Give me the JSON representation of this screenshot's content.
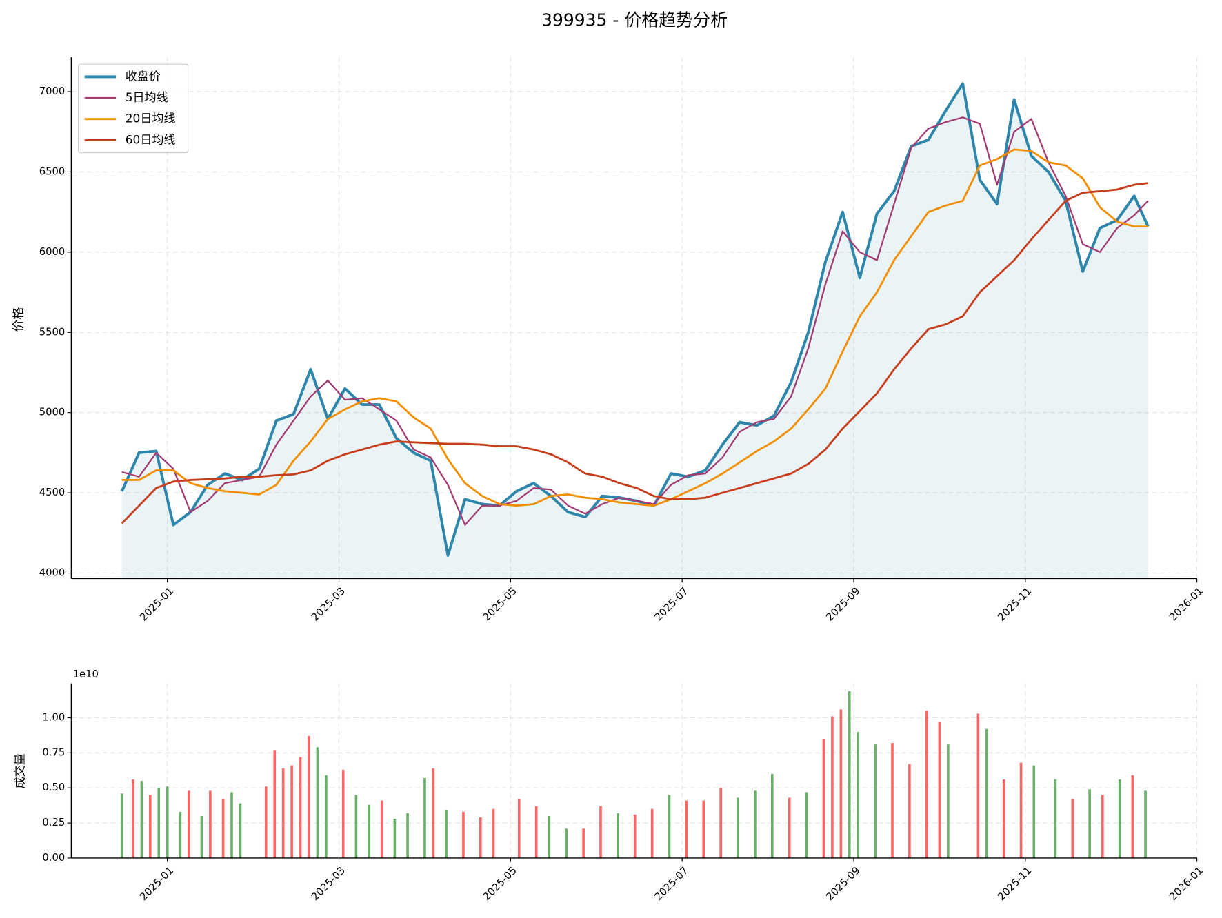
{
  "chart_data": [
    {
      "type": "line",
      "title": "399935 - 价格趋势分析",
      "ylabel": "价格",
      "grid": true,
      "legend": "upper left",
      "fill_color": "#2e86ab",
      "xlim": [
        -1.12,
        12.0
      ],
      "xticks": [
        {
          "value": 0,
          "label": "2025-01"
        },
        {
          "value": 2,
          "label": "2025-03"
        },
        {
          "value": 4,
          "label": "2025-05"
        },
        {
          "value": 6,
          "label": "2025-07"
        },
        {
          "value": 8,
          "label": "2025-09"
        },
        {
          "value": 10,
          "label": "2025-11"
        },
        {
          "value": 12,
          "label": "2026-01"
        }
      ],
      "ylim": [
        3966,
        7215
      ],
      "yticks": [
        4000,
        4500,
        5000,
        5500,
        6000,
        6500,
        7000
      ],
      "x": [
        -0.53,
        -0.33,
        -0.13,
        0.07,
        0.27,
        0.47,
        0.67,
        0.87,
        1.07,
        1.27,
        1.47,
        1.67,
        1.87,
        2.07,
        2.27,
        2.47,
        2.67,
        2.87,
        3.07,
        3.27,
        3.47,
        3.67,
        3.87,
        4.07,
        4.27,
        4.47,
        4.67,
        4.87,
        5.07,
        5.27,
        5.47,
        5.67,
        5.87,
        6.07,
        6.27,
        6.47,
        6.67,
        6.87,
        7.07,
        7.27,
        7.47,
        7.67,
        7.87,
        8.07,
        8.27,
        8.47,
        8.67,
        8.87,
        9.07,
        9.27,
        9.47,
        9.67,
        9.87,
        10.07,
        10.27,
        10.47,
        10.67,
        10.87,
        11.07,
        11.27,
        11.43
      ],
      "series": [
        {
          "name": "收盘价",
          "color": "#2e86ab",
          "values": [
            4510,
            4750,
            4760,
            4300,
            4380,
            4550,
            4620,
            4580,
            4650,
            4950,
            4990,
            5270,
            4960,
            5150,
            5050,
            5050,
            4840,
            4750,
            4700,
            4110,
            4460,
            4430,
            4420,
            4510,
            4560,
            4480,
            4380,
            4350,
            4480,
            4470,
            4450,
            4420,
            4620,
            4600,
            4640,
            4800,
            4940,
            4920,
            4980,
            5190,
            5500,
            5940,
            6250,
            5840,
            6240,
            6380,
            6660,
            6700,
            6880,
            7050,
            6450,
            6300,
            6950,
            6600,
            6500,
            6320,
            5880,
            6150,
            6200,
            6350,
            6160
          ]
        },
        {
          "name": "5日均线",
          "color": "#a23b72",
          "values": [
            4630,
            4600,
            4750,
            4650,
            4380,
            4450,
            4560,
            4580,
            4600,
            4800,
            4950,
            5100,
            5200,
            5080,
            5090,
            5020,
            4950,
            4770,
            4720,
            4550,
            4300,
            4420,
            4420,
            4450,
            4530,
            4520,
            4420,
            4370,
            4430,
            4470,
            4450,
            4430,
            4550,
            4610,
            4620,
            4720,
            4880,
            4940,
            4960,
            5100,
            5400,
            5800,
            6130,
            6000,
            5950,
            6300,
            6650,
            6770,
            6810,
            6840,
            6800,
            6420,
            6750,
            6830,
            6560,
            6350,
            6050,
            6000,
            6150,
            6230,
            6320
          ]
        },
        {
          "name": "20日均线",
          "color": "#f18f01",
          "values": [
            4580,
            4580,
            4640,
            4640,
            4560,
            4530,
            4510,
            4500,
            4490,
            4550,
            4700,
            4820,
            4960,
            5020,
            5070,
            5090,
            5070,
            4970,
            4900,
            4710,
            4560,
            4480,
            4430,
            4420,
            4430,
            4480,
            4490,
            4470,
            4460,
            4440,
            4430,
            4420,
            4460,
            4510,
            4560,
            4620,
            4690,
            4760,
            4820,
            4900,
            5020,
            5150,
            5380,
            5600,
            5750,
            5950,
            6100,
            6250,
            6290,
            6320,
            6540,
            6580,
            6640,
            6630,
            6560,
            6540,
            6460,
            6280,
            6190,
            6160,
            6160
          ]
        },
        {
          "name": "60日均线",
          "color": "#c73e1d",
          "values": [
            4310,
            4420,
            4530,
            4570,
            4580,
            4585,
            4590,
            4600,
            4600,
            4610,
            4615,
            4640,
            4700,
            4740,
            4770,
            4800,
            4820,
            4815,
            4810,
            4805,
            4805,
            4800,
            4790,
            4790,
            4770,
            4740,
            4690,
            4620,
            4600,
            4560,
            4530,
            4480,
            4460,
            4460,
            4470,
            4500,
            4530,
            4560,
            4590,
            4620,
            4680,
            4770,
            4900,
            5010,
            5120,
            5270,
            5400,
            5520,
            5550,
            5600,
            5750,
            5850,
            5950,
            6080,
            6200,
            6320,
            6370,
            6380,
            6390,
            6420,
            6430
          ]
        }
      ]
    },
    {
      "type": "bar",
      "ylabel": "成交量",
      "offset_label": "1e10",
      "grid": true,
      "xlim": [
        -1.12,
        12.0
      ],
      "xticks": [
        {
          "value": 0,
          "label": "2025-01"
        },
        {
          "value": 2,
          "label": "2025-03"
        },
        {
          "value": 4,
          "label": "2025-05"
        },
        {
          "value": 6,
          "label": "2025-07"
        },
        {
          "value": 8,
          "label": "2025-09"
        },
        {
          "value": 10,
          "label": "2025-11"
        },
        {
          "value": 12,
          "label": "2026-01"
        }
      ],
      "ylim": [
        0,
        1.245
      ],
      "yticks": [
        {
          "value": 0,
          "label": "0.00"
        },
        {
          "value": 0.25,
          "label": "0.25"
        },
        {
          "value": 0.5,
          "label": "0.50"
        },
        {
          "value": 0.75,
          "label": "0.75"
        },
        {
          "value": 1,
          "label": "1.00"
        }
      ],
      "x": [
        -0.53,
        -0.4,
        -0.3,
        -0.2,
        -0.1,
        0.0,
        0.15,
        0.25,
        0.4,
        0.5,
        0.65,
        0.75,
        0.85,
        1.15,
        1.25,
        1.35,
        1.45,
        1.55,
        1.65,
        1.75,
        1.85,
        2.05,
        2.2,
        2.35,
        2.5,
        2.65,
        2.8,
        3.0,
        3.1,
        3.25,
        3.45,
        3.65,
        3.8,
        4.1,
        4.3,
        4.45,
        4.65,
        4.85,
        5.05,
        5.25,
        5.45,
        5.65,
        5.85,
        6.05,
        6.25,
        6.45,
        6.65,
        6.85,
        7.05,
        7.25,
        7.45,
        7.65,
        7.75,
        7.85,
        7.95,
        8.05,
        8.25,
        8.45,
        8.65,
        8.85,
        9.0,
        9.1,
        9.45,
        9.55,
        9.75,
        9.95,
        10.1,
        10.35,
        10.55,
        10.75,
        10.9,
        11.1,
        11.25,
        11.4
      ],
      "values": [
        0.46,
        0.56,
        0.55,
        0.45,
        0.5,
        0.51,
        0.33,
        0.48,
        0.3,
        0.48,
        0.42,
        0.47,
        0.39,
        0.51,
        0.77,
        0.64,
        0.66,
        0.72,
        0.87,
        0.79,
        0.59,
        0.63,
        0.45,
        0.38,
        0.41,
        0.28,
        0.32,
        0.57,
        0.64,
        0.34,
        0.33,
        0.29,
        0.35,
        0.42,
        0.37,
        0.3,
        0.21,
        0.21,
        0.37,
        0.32,
        0.31,
        0.35,
        0.45,
        0.41,
        0.41,
        0.5,
        0.43,
        0.48,
        0.6,
        0.43,
        0.47,
        0.85,
        1.01,
        1.06,
        1.19,
        0.9,
        0.81,
        0.82,
        0.67,
        1.05,
        0.97,
        0.81,
        1.03,
        0.92,
        0.56,
        0.68,
        0.66,
        0.56,
        0.42,
        0.49,
        0.45,
        0.56,
        0.59,
        0.48
      ],
      "colors": [
        "#6ab06a",
        "#ff6666",
        "#6ab06a",
        "#ff6666",
        "#6ab06a",
        "#6ab06a",
        "#6ab06a",
        "#ff6666",
        "#6ab06a",
        "#ff6666",
        "#ff6666",
        "#6ab06a",
        "#6ab06a",
        "#ff6666",
        "#ff6666",
        "#ff6666",
        "#ff6666",
        "#ff6666",
        "#ff6666",
        "#6ab06a",
        "#6ab06a",
        "#ff6666",
        "#6ab06a",
        "#6ab06a",
        "#ff6666",
        "#6ab06a",
        "#6ab06a",
        "#6ab06a",
        "#ff6666",
        "#6ab06a",
        "#ff6666",
        "#ff6666",
        "#ff6666",
        "#ff6666",
        "#ff6666",
        "#6ab06a",
        "#6ab06a",
        "#ff6666",
        "#ff6666",
        "#6ab06a",
        "#ff6666",
        "#ff6666",
        "#6ab06a",
        "#ff6666",
        "#ff6666",
        "#ff6666",
        "#6ab06a",
        "#6ab06a",
        "#6ab06a",
        "#ff6666",
        "#6ab06a",
        "#ff6666",
        "#ff6666",
        "#ff6666",
        "#6ab06a",
        "#6ab06a",
        "#6ab06a",
        "#ff6666",
        "#ff6666",
        "#ff6666",
        "#ff6666",
        "#6ab06a",
        "#ff6666",
        "#6ab06a",
        "#ff6666",
        "#ff6666",
        "#6ab06a",
        "#6ab06a",
        "#ff6666",
        "#6ab06a",
        "#ff6666",
        "#6ab06a",
        "#ff6666",
        "#6ab06a"
      ]
    }
  ]
}
